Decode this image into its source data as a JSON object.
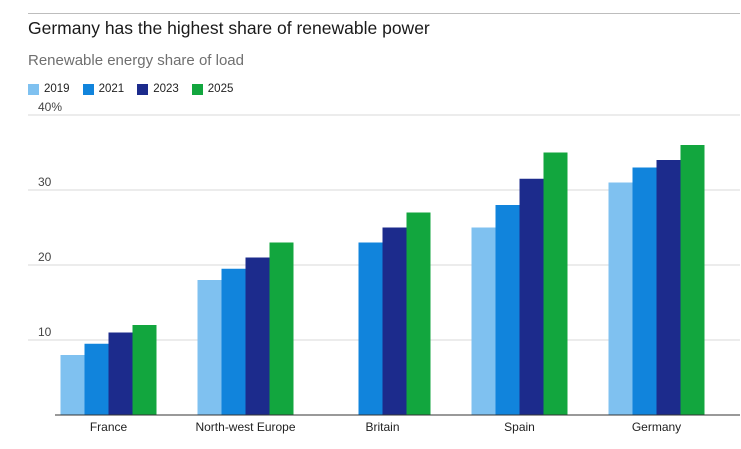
{
  "header": {
    "title": "Germany has the highest share of renewable power",
    "subtitle": "Renewable energy share of load"
  },
  "colors": {
    "2019": "#7fc1f0",
    "2021": "#1184dc",
    "2023": "#1c2b8c",
    "2025": "#12a63e"
  },
  "chart_data": {
    "type": "bar",
    "title": "Germany has the highest share of renewable power",
    "subtitle": "Renewable energy share of load",
    "xlabel": "",
    "ylabel": "",
    "categories": [
      "France",
      "North-west Europe",
      "Britain",
      "Spain",
      "Germany"
    ],
    "series": [
      {
        "name": "2019",
        "values": [
          8,
          18,
          null,
          25,
          31
        ]
      },
      {
        "name": "2021",
        "values": [
          9.5,
          19.5,
          23,
          28,
          33
        ]
      },
      {
        "name": "2023",
        "values": [
          11,
          21,
          25,
          31.5,
          34
        ]
      },
      {
        "name": "2025",
        "values": [
          12,
          23,
          27,
          35,
          36
        ]
      }
    ],
    "ylim": [
      0,
      40
    ],
    "yticks": [
      10,
      20,
      30,
      40
    ],
    "ytick_labels": [
      "10",
      "20",
      "30",
      "40%"
    ],
    "grid": true,
    "legend": "top-left"
  }
}
